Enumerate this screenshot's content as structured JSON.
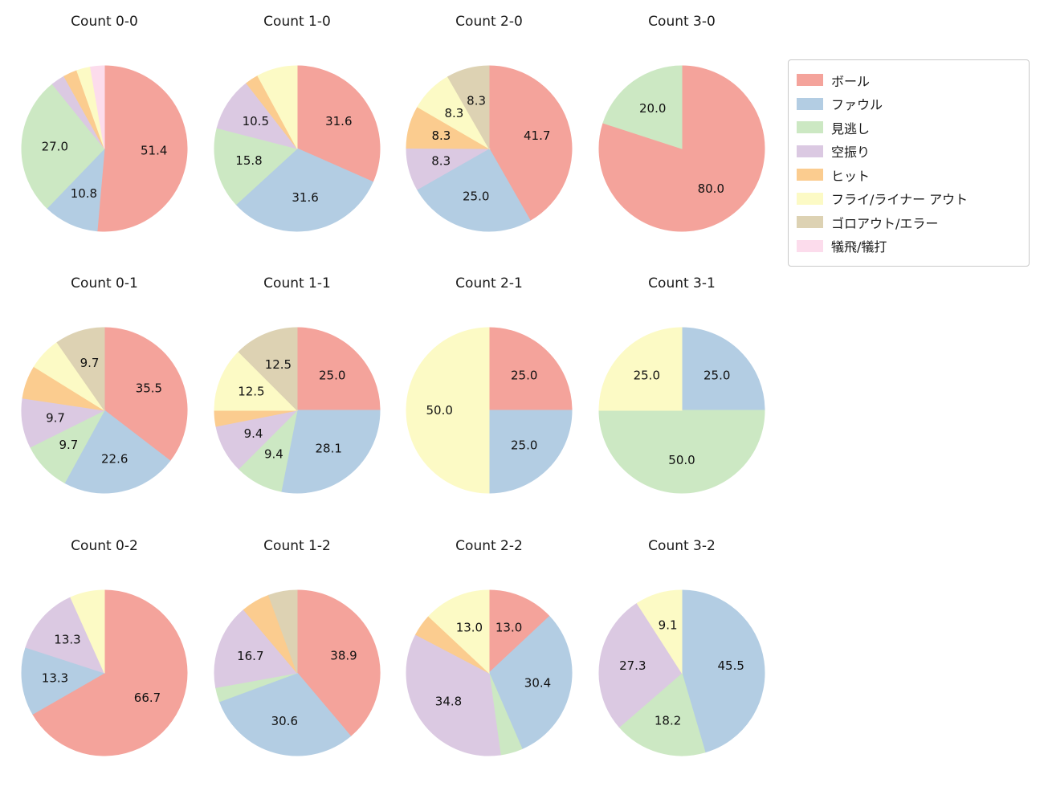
{
  "figure": {
    "background": "#ffffff"
  },
  "label_min_percent_shown": 8.0,
  "legend": {
    "items": [
      {
        "label": "ボール",
        "color": "#f4a39b"
      },
      {
        "label": "ファウル",
        "color": "#b3cde3"
      },
      {
        "label": "見逃し",
        "color": "#cce8c3"
      },
      {
        "label": "空振り",
        "color": "#dbc9e2"
      },
      {
        "label": "ヒット",
        "color": "#fbcc8f"
      },
      {
        "label": "フライ/ライナー アウト",
        "color": "#fcfac5"
      },
      {
        "label": "ゴロアウト/エラー",
        "color": "#ddd2b3"
      },
      {
        "label": "犠飛/犠打",
        "color": "#fcdcec"
      }
    ]
  },
  "chart_data": [
    {
      "type": "pie",
      "title": "Count 0-0",
      "start_angle": 90,
      "direction": "clockwise",
      "slices": [
        {
          "label": "ボール",
          "value": 51.4
        },
        {
          "label": "ファウル",
          "value": 10.8
        },
        {
          "label": "見逃し",
          "value": 27.0
        },
        {
          "label": "空振り",
          "value": 2.7
        },
        {
          "label": "ヒット",
          "value": 2.7
        },
        {
          "label": "フライ/ライナー アウト",
          "value": 2.7
        },
        {
          "label": "犠飛/犠打",
          "value": 2.7
        }
      ]
    },
    {
      "type": "pie",
      "title": "Count 1-0",
      "start_angle": 90,
      "direction": "clockwise",
      "slices": [
        {
          "label": "ボール",
          "value": 31.6
        },
        {
          "label": "ファウル",
          "value": 31.6
        },
        {
          "label": "見逃し",
          "value": 15.8
        },
        {
          "label": "空振り",
          "value": 10.5
        },
        {
          "label": "ヒット",
          "value": 2.6
        },
        {
          "label": "フライ/ライナー アウト",
          "value": 7.9
        }
      ]
    },
    {
      "type": "pie",
      "title": "Count 2-0",
      "start_angle": 90,
      "direction": "clockwise",
      "slices": [
        {
          "label": "ボール",
          "value": 41.7
        },
        {
          "label": "ファウル",
          "value": 25.0
        },
        {
          "label": "空振り",
          "value": 8.3
        },
        {
          "label": "ヒット",
          "value": 8.3
        },
        {
          "label": "フライ/ライナー アウト",
          "value": 8.3
        },
        {
          "label": "ゴロアウト/エラー",
          "value": 8.3
        }
      ]
    },
    {
      "type": "pie",
      "title": "Count 3-0",
      "start_angle": 90,
      "direction": "clockwise",
      "slices": [
        {
          "label": "ボール",
          "value": 80.0
        },
        {
          "label": "見逃し",
          "value": 20.0
        }
      ]
    },
    {
      "type": "pie",
      "title": "Count 0-1",
      "start_angle": 90,
      "direction": "clockwise",
      "slices": [
        {
          "label": "ボール",
          "value": 35.5
        },
        {
          "label": "ファウル",
          "value": 22.6
        },
        {
          "label": "見逃し",
          "value": 9.7
        },
        {
          "label": "空振り",
          "value": 9.7
        },
        {
          "label": "ヒット",
          "value": 6.5
        },
        {
          "label": "フライ/ライナー アウト",
          "value": 6.5
        },
        {
          "label": "ゴロアウト/エラー",
          "value": 9.7
        }
      ]
    },
    {
      "type": "pie",
      "title": "Count 1-1",
      "start_angle": 90,
      "direction": "clockwise",
      "slices": [
        {
          "label": "ボール",
          "value": 25.0
        },
        {
          "label": "ファウル",
          "value": 28.1
        },
        {
          "label": "見逃し",
          "value": 9.4
        },
        {
          "label": "空振り",
          "value": 9.4
        },
        {
          "label": "ヒット",
          "value": 3.1
        },
        {
          "label": "フライ/ライナー アウト",
          "value": 12.5
        },
        {
          "label": "ゴロアウト/エラー",
          "value": 12.5
        }
      ]
    },
    {
      "type": "pie",
      "title": "Count 2-1",
      "start_angle": 90,
      "direction": "clockwise",
      "slices": [
        {
          "label": "ボール",
          "value": 25.0
        },
        {
          "label": "ファウル",
          "value": 25.0
        },
        {
          "label": "フライ/ライナー アウト",
          "value": 50.0
        }
      ]
    },
    {
      "type": "pie",
      "title": "Count 3-1",
      "start_angle": 90,
      "direction": "clockwise",
      "slices": [
        {
          "label": "ファウル",
          "value": 25.0
        },
        {
          "label": "見逃し",
          "value": 50.0
        },
        {
          "label": "フライ/ライナー アウト",
          "value": 25.0
        }
      ]
    },
    {
      "type": "pie",
      "title": "Count 0-2",
      "start_angle": 90,
      "direction": "clockwise",
      "slices": [
        {
          "label": "ボール",
          "value": 66.7
        },
        {
          "label": "ファウル",
          "value": 13.3
        },
        {
          "label": "空振り",
          "value": 13.3
        },
        {
          "label": "フライ/ライナー アウト",
          "value": 6.7
        }
      ]
    },
    {
      "type": "pie",
      "title": "Count 1-2",
      "start_angle": 90,
      "direction": "clockwise",
      "slices": [
        {
          "label": "ボール",
          "value": 38.9
        },
        {
          "label": "ファウル",
          "value": 30.6
        },
        {
          "label": "見逃し",
          "value": 2.8
        },
        {
          "label": "空振り",
          "value": 16.7
        },
        {
          "label": "ヒット",
          "value": 5.6
        },
        {
          "label": "ゴロアウト/エラー",
          "value": 5.6
        }
      ]
    },
    {
      "type": "pie",
      "title": "Count 2-2",
      "start_angle": 90,
      "direction": "clockwise",
      "slices": [
        {
          "label": "ボール",
          "value": 13.0
        },
        {
          "label": "ファウル",
          "value": 30.4
        },
        {
          "label": "見逃し",
          "value": 4.3
        },
        {
          "label": "空振り",
          "value": 34.8
        },
        {
          "label": "ヒット",
          "value": 4.3
        },
        {
          "label": "フライ/ライナー アウト",
          "value": 13.0
        }
      ]
    },
    {
      "type": "pie",
      "title": "Count 3-2",
      "start_angle": 90,
      "direction": "clockwise",
      "slices": [
        {
          "label": "ファウル",
          "value": 45.5
        },
        {
          "label": "見逃し",
          "value": 18.2
        },
        {
          "label": "空振り",
          "value": 27.3
        },
        {
          "label": "フライ/ライナー アウト",
          "value": 9.1
        }
      ]
    }
  ]
}
